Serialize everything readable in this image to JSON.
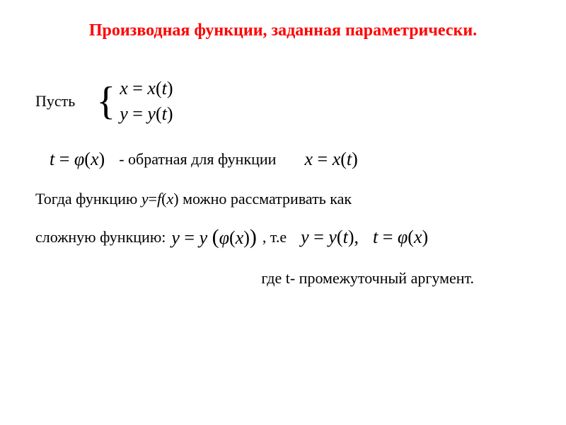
{
  "colors": {
    "title": "#ff0000",
    "body_text": "#000000",
    "background": "#ffffff"
  },
  "typography": {
    "title_fontsize": 24,
    "body_fontsize": 22,
    "math_fontsize": 26,
    "font_family": "Times New Roman"
  },
  "title": "Производная функции, заданная параметрически.",
  "let_label": "Пусть",
  "system": {
    "eq1": "x = x(t)",
    "eq2": "y = y(t)"
  },
  "inverse": {
    "lhs": "t = φ(x)",
    "desc": "- обратная для функции",
    "rhs": "x = x(t)"
  },
  "then_line": {
    "prefix": "Тогда функцию ",
    "func": "y=f(x)",
    "suffix": " можно рассматривать как"
  },
  "complex": {
    "label": "сложную функцию:",
    "eq_main": "y = y (φ(x))",
    "ie": ", т.е",
    "eq_yt": "y = y(t),",
    "eq_tphi": "t = φ(x)"
  },
  "footer": "где t- промежуточный аргумент."
}
